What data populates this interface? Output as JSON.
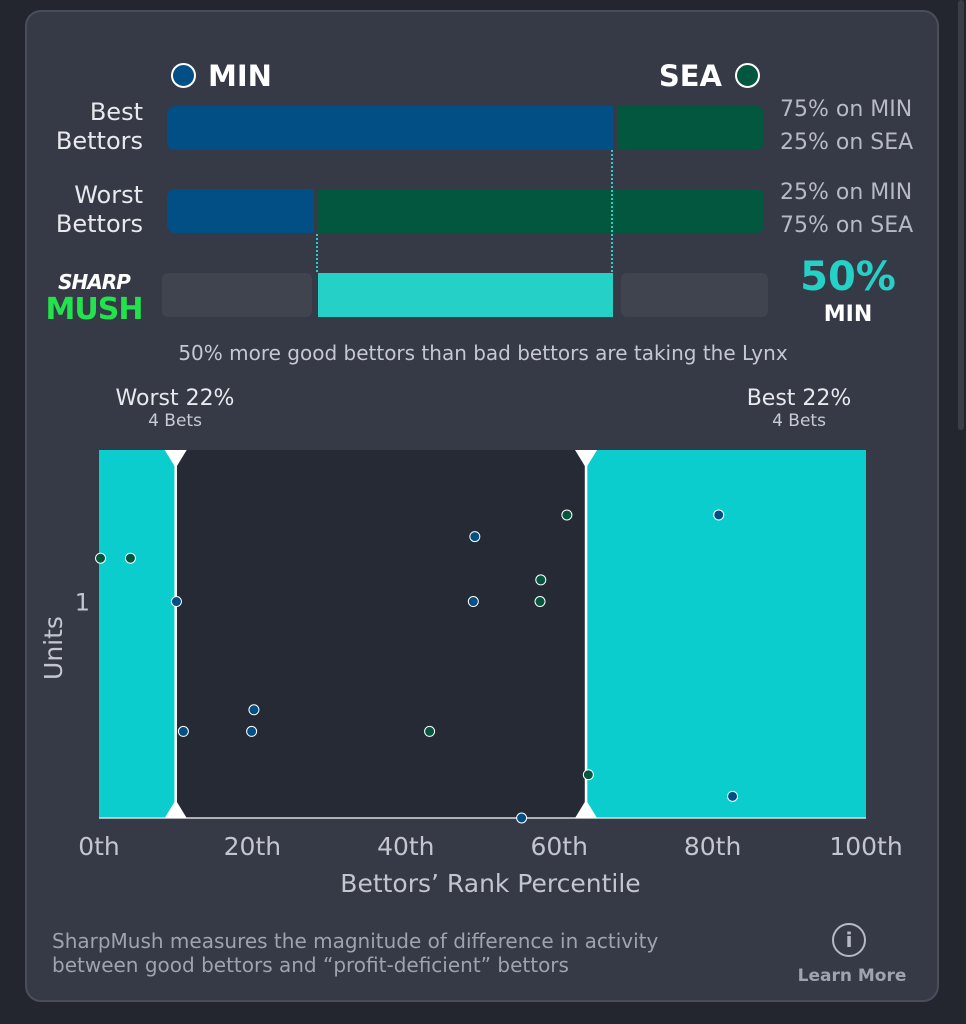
{
  "teams": {
    "left": {
      "name": "MIN",
      "color": "#024f85"
    },
    "right": {
      "name": "SEA",
      "color": "#03573f"
    }
  },
  "rows": {
    "best": {
      "label_line1": "Best",
      "label_line2": "Bettors",
      "min_share": 0.75,
      "line1": "75% on MIN",
      "line2": "25% on SEA"
    },
    "worst": {
      "label_line1": "Worst",
      "label_line2": "Bettors",
      "min_share": 0.25,
      "line1": "25% on MIN",
      "line2": "75% on SEA"
    }
  },
  "logo": {
    "line1": "SHARP",
    "line2": "MUSH"
  },
  "sharpmush": {
    "value": "50%",
    "team": "MIN",
    "range": [
      0.25,
      0.75
    ],
    "accent": "#25d0c6"
  },
  "summary": "50% more good bettors than bad bettors are taking the Lynx",
  "markers": {
    "worst": {
      "label": "Worst 22%",
      "bets": "4 Bets"
    },
    "best": {
      "label": "Best 22%",
      "bets": "4 Bets"
    }
  },
  "chart_data": {
    "type": "scatter",
    "xlabel": "Bettors’ Rank Percentile",
    "ylabel": "Units",
    "xlim": [
      0,
      100
    ],
    "ylim": [
      0,
      1.7
    ],
    "x_ticks": [
      {
        "v": 0,
        "label": "0th"
      },
      {
        "v": 20,
        "label": "20th"
      },
      {
        "v": 40,
        "label": "40th"
      },
      {
        "v": 60,
        "label": "60th"
      },
      {
        "v": 80,
        "label": "80th"
      },
      {
        "v": 100,
        "label": "100th"
      }
    ],
    "y_ticks": [
      {
        "v": 1,
        "label": "1"
      }
    ],
    "worst_region": [
      0,
      10
    ],
    "best_region": [
      63.5,
      100
    ],
    "points": [
      {
        "x": 0.2,
        "y": 1.2,
        "team": "SEA"
      },
      {
        "x": 4.1,
        "y": 1.2,
        "team": "SEA"
      },
      {
        "x": 10.1,
        "y": 1.0,
        "team": "MIN"
      },
      {
        "x": 11.0,
        "y": 0.4,
        "team": "MIN"
      },
      {
        "x": 19.9,
        "y": 0.4,
        "team": "MIN"
      },
      {
        "x": 20.2,
        "y": 0.5,
        "team": "MIN"
      },
      {
        "x": 43.1,
        "y": 0.4,
        "team": "SEA"
      },
      {
        "x": 48.8,
        "y": 1.0,
        "team": "MIN"
      },
      {
        "x": 49.0,
        "y": 1.3,
        "team": "MIN"
      },
      {
        "x": 55.1,
        "y": 0.0,
        "team": "MIN"
      },
      {
        "x": 57.5,
        "y": 1.0,
        "team": "SEA"
      },
      {
        "x": 57.6,
        "y": 1.1,
        "team": "SEA"
      },
      {
        "x": 61.0,
        "y": 1.4,
        "team": "SEA"
      },
      {
        "x": 63.8,
        "y": 0.2,
        "team": "SEA"
      },
      {
        "x": 80.8,
        "y": 1.4,
        "team": "MIN"
      },
      {
        "x": 82.6,
        "y": 0.1,
        "team": "MIN"
      }
    ]
  },
  "footer": {
    "line1": "SharpMush measures the magnitude of difference in activity",
    "line2": "between good bettors and “profit-deficient” bettors",
    "learn_more": "Learn More",
    "info_icon": "i"
  }
}
